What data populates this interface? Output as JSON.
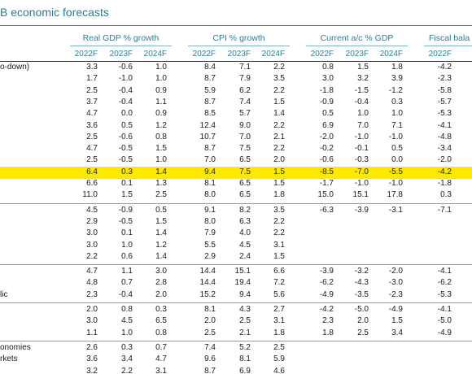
{
  "title": "B economic forecasts",
  "column_groups": [
    {
      "label": "Real GDP % growth",
      "years": [
        "2022F",
        "2023F",
        "2024F"
      ]
    },
    {
      "label": "CPI % growth",
      "years": [
        "2022F",
        "2023F",
        "2024F"
      ]
    },
    {
      "label": "Current a/c % GDP",
      "years": [
        "2022F",
        "2023F",
        "2024F"
      ]
    },
    {
      "label": "Fiscal bala",
      "years": [
        "2022F"
      ]
    }
  ],
  "sections": [
    {
      "rows": [
        {
          "label": "o-down)",
          "values": [
            "3.3",
            "-0.6",
            "1.0",
            "8.4",
            "7.1",
            "2.2",
            "0.8",
            "1.5",
            "1.8",
            "-4.2"
          ]
        },
        {
          "values": [
            "1.7",
            "-1.0",
            "1.0",
            "8.7",
            "7.9",
            "3.5",
            "3.0",
            "3.2",
            "3.9",
            "-2.3"
          ]
        },
        {
          "values": [
            "2.5",
            "-0.4",
            "0.9",
            "5.9",
            "6.2",
            "2.2",
            "-1.8",
            "-1.5",
            "-1.2",
            "-5.8"
          ]
        },
        {
          "values": [
            "3.7",
            "-0.4",
            "1.1",
            "8.7",
            "7.4",
            "1.5",
            "-0.9",
            "-0.4",
            "0.3",
            "-5.7"
          ]
        },
        {
          "values": [
            "4.7",
            "0.0",
            "0.9",
            "8.5",
            "5.7",
            "1.4",
            "0.5",
            "1.0",
            "1.0",
            "-5.3"
          ]
        },
        {
          "values": [
            "3.6",
            "0.5",
            "1.2",
            "12.4",
            "9.0",
            "2.2",
            "6.9",
            "7.0",
            "7.1",
            "-4.1"
          ]
        },
        {
          "values": [
            "2.5",
            "-0.6",
            "0.8",
            "10.7",
            "7.0",
            "2.1",
            "-2.0",
            "-1.0",
            "-1.0",
            "-4.8"
          ]
        },
        {
          "values": [
            "4.7",
            "-0.5",
            "1.5",
            "8.7",
            "7.5",
            "2.2",
            "-0.2",
            "-0.1",
            "0.5",
            "-3.4"
          ]
        },
        {
          "values": [
            "2.5",
            "-0.5",
            "1.0",
            "7.0",
            "6.5",
            "2.0",
            "-0.6",
            "-0.3",
            "0.0",
            "-2.0"
          ]
        },
        {
          "values": [
            "6.4",
            "0.3",
            "1.4",
            "9.4",
            "7.5",
            "1.5",
            "-8.5",
            "-7.0",
            "-5.5",
            "-4.2"
          ],
          "highlighted": true
        },
        {
          "values": [
            "6.6",
            "0.1",
            "1.3",
            "8.1",
            "6.5",
            "1.5",
            "-1.7",
            "-1.0",
            "-1.0",
            "-1.8"
          ]
        },
        {
          "values": [
            "11.0",
            "1.5",
            "2.5",
            "8.0",
            "6.5",
            "1.8",
            "15.0",
            "15.1",
            "17.8",
            "0.3"
          ]
        }
      ]
    },
    {
      "rows": [
        {
          "values": [
            "4.5",
            "-0.9",
            "0.5",
            "9.1",
            "8.2",
            "3.5",
            "-6.3",
            "-3.9",
            "-3.1",
            "-7.1"
          ]
        },
        {
          "values": [
            "2.9",
            "-0.5",
            "1.5",
            "8.0",
            "6.3",
            "2.2"
          ]
        },
        {
          "values": [
            "3.0",
            "0.1",
            "1.4",
            "7.9",
            "4.0",
            "2.2"
          ]
        },
        {
          "values": [
            "3.0",
            "1.0",
            "1.2",
            "5.5",
            "4.5",
            "3.1"
          ]
        },
        {
          "values": [
            "2.2",
            "0.6",
            "1.4",
            "2.9",
            "2.4",
            "1.5"
          ]
        }
      ]
    },
    {
      "rows": [
        {
          "values": [
            "4.7",
            "1.1",
            "3.0",
            "14.4",
            "15.1",
            "6.6",
            "-3.9",
            "-3.2",
            "-2.0",
            "-4.1"
          ]
        },
        {
          "values": [
            "4.8",
            "0.7",
            "2.8",
            "14.4",
            "19.4",
            "7.2",
            "-6.2",
            "-4.3",
            "-3.0",
            "-6.2"
          ]
        },
        {
          "label": "lic",
          "values": [
            "2.3",
            "-0.4",
            "2.0",
            "15.2",
            "9.4",
            "5.6",
            "-4.9",
            "-3.5",
            "-2.3",
            "-5.3"
          ]
        }
      ]
    },
    {
      "rows": [
        {
          "values": [
            "2.0",
            "0.8",
            "0.3",
            "8.1",
            "4.3",
            "2.7",
            "-4.2",
            "-5.0",
            "-4.9",
            "-4.1"
          ]
        },
        {
          "values": [
            "3.0",
            "4.5",
            "6.5",
            "2.0",
            "2.5",
            "3.1",
            "2.3",
            "2.0",
            "1.5",
            "-5.0"
          ]
        },
        {
          "values": [
            "1.1",
            "1.0",
            "0.8",
            "2.5",
            "2.1",
            "1.8",
            "1.8",
            "2.5",
            "3.4",
            "-4.9"
          ]
        }
      ]
    },
    {
      "rows": [
        {
          "label": "onomies",
          "values": [
            "2.6",
            "0.3",
            "0.7",
            "7.4",
            "5.2",
            "2.5"
          ]
        },
        {
          "label": "rkets",
          "values": [
            "3.6",
            "3.4",
            "4.7",
            "9.6",
            "8.1",
            "5.9"
          ]
        },
        {
          "values": [
            "3.2",
            "2.2",
            "3.1",
            "8.7",
            "6.9",
            "4.6"
          ]
        }
      ]
    }
  ]
}
